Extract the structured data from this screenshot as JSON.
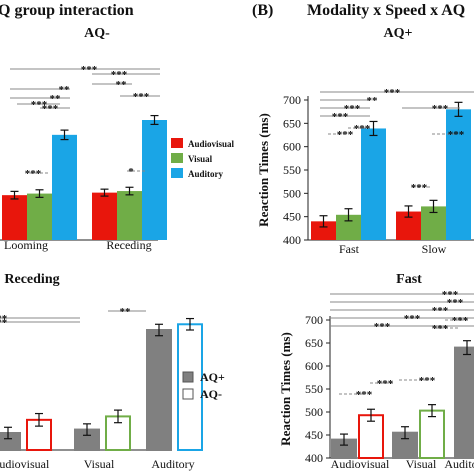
{
  "panel_A_heading": "Q group interaction",
  "panel_B_letter": "(B)",
  "panel_B_heading": "Modality x Speed x AQ",
  "chart_data": [
    {
      "id": "top-left",
      "type": "bar",
      "title": "AQ-",
      "categories": [
        "Looming",
        "Receding"
      ],
      "series": [
        {
          "name": "Audiovisual",
          "values": [
            447,
            455
          ],
          "errors": [
            12,
            11
          ],
          "color": "#e8160c"
        },
        {
          "name": "Visual",
          "values": [
            452,
            460
          ],
          "errors": [
            12,
            12
          ],
          "color": "#70ad47"
        },
        {
          "name": "Auditory",
          "values": [
            638,
            685
          ],
          "errors": [
            15,
            14
          ],
          "color": "#1aa5e6"
        }
      ],
      "legend": "right",
      "ylim": [
        400,
        720
      ],
      "significance": [
        "***",
        "**",
        "**",
        "***",
        "***",
        "**",
        "***",
        "***",
        "***",
        "*"
      ]
    },
    {
      "id": "top-right",
      "type": "bar",
      "title": "AQ+",
      "categories": [
        "Fast",
        "Slow"
      ],
      "series": [
        {
          "name": "Audiovisual",
          "values": [
            440,
            461
          ],
          "errors": [
            12,
            12
          ],
          "color": "#e8160c"
        },
        {
          "name": "Visual",
          "values": [
            454,
            472
          ],
          "errors": [
            13,
            13
          ],
          "color": "#70ad47"
        },
        {
          "name": "Auditory",
          "values": [
            639,
            680
          ],
          "errors": [
            15,
            15
          ],
          "color": "#1aa5e6"
        }
      ],
      "ylabel": "Reaction Times (ms)",
      "yticks": [
        400,
        450,
        500,
        550,
        600,
        650,
        700
      ],
      "ylim": [
        400,
        720
      ],
      "significance": [
        "***",
        "**",
        "***",
        "***",
        "***",
        "***",
        "***",
        "***",
        "***"
      ]
    },
    {
      "id": "bottom-left",
      "type": "bar",
      "title": "Receding",
      "categories": [
        "Audiovisual",
        "Visual",
        "Auditory"
      ],
      "series": [
        {
          "name": "AQ+",
          "values": [
            470,
            476,
            650
          ],
          "errors": [
            10,
            10,
            10
          ],
          "fill": "#808080",
          "stroke": "#808080"
        },
        {
          "name": "AQ-",
          "values": [
            493,
            499,
            660
          ],
          "errors": [
            11,
            11,
            10
          ],
          "fill": "#ffffff",
          "stroke": "per-category"
        }
      ],
      "category_colors": [
        "#e8160c",
        "#70ad47",
        "#1aa5e6"
      ],
      "legend": "right",
      "ylim": [
        440,
        680
      ],
      "significance": [
        "***",
        "***",
        "**"
      ]
    },
    {
      "id": "bottom-right",
      "type": "bar",
      "title": "Fast",
      "categories": [
        "Audiovisual",
        "Visual",
        "Auditory"
      ],
      "series": [
        {
          "name": "AQ+",
          "values": [
            440,
            455,
            640
          ],
          "errors": [
            12,
            13,
            15
          ],
          "fill": "#808080",
          "stroke": "#808080"
        },
        {
          "name": "AQ-",
          "values": [
            493,
            503,
            660
          ],
          "errors": [
            13,
            13,
            15
          ],
          "fill": "#ffffff",
          "stroke": "per-category"
        }
      ],
      "category_colors": [
        "#e8160c",
        "#70ad47",
        "#1aa5e6"
      ],
      "ylabel": "Reaction Times (ms)",
      "yticks": [
        400,
        450,
        500,
        550,
        600,
        650,
        700
      ],
      "ylim": [
        400,
        700
      ],
      "significance": [
        "***",
        "***",
        "***",
        "***",
        "***",
        "***",
        "***",
        "***",
        "***",
        "***"
      ]
    }
  ]
}
